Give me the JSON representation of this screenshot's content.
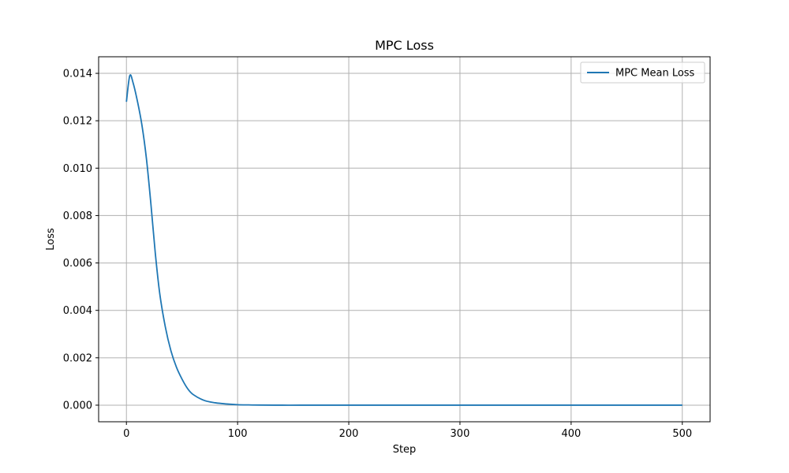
{
  "chart_data": {
    "type": "line",
    "title": "MPC Loss",
    "xlabel": "Step",
    "ylabel": "Loss",
    "xlim": [
      -25,
      525
    ],
    "ylim": [
      -0.0007,
      0.0147
    ],
    "x_ticks": [
      0,
      100,
      200,
      300,
      400,
      500
    ],
    "x_tick_labels": [
      "0",
      "100",
      "200",
      "300",
      "400",
      "500"
    ],
    "y_ticks": [
      0.0,
      0.002,
      0.004,
      0.006,
      0.008,
      0.01,
      0.012,
      0.014
    ],
    "y_tick_labels": [
      "0.000",
      "0.002",
      "0.004",
      "0.006",
      "0.008",
      "0.010",
      "0.012",
      "0.014"
    ],
    "grid": true,
    "legend_position": "top-right",
    "series": [
      {
        "name": "MPC Mean Loss",
        "color": "#1f77b4",
        "x": [
          0,
          3,
          6,
          10,
          14,
          18,
          22,
          26,
          30,
          35,
          40,
          45,
          50,
          55,
          60,
          70,
          80,
          90,
          100,
          110,
          120,
          140,
          160,
          200,
          300,
          400,
          500
        ],
        "y": [
          0.0128,
          0.0139,
          0.0136,
          0.0128,
          0.0118,
          0.0104,
          0.0085,
          0.0064,
          0.0047,
          0.0033,
          0.0023,
          0.0016,
          0.0011,
          0.0007,
          0.00045,
          0.0002,
          0.0001,
          5e-05,
          2e-05,
          1e-05,
          5e-06,
          0.0,
          0.0,
          0.0,
          0.0,
          0.0,
          0.0
        ]
      }
    ]
  }
}
